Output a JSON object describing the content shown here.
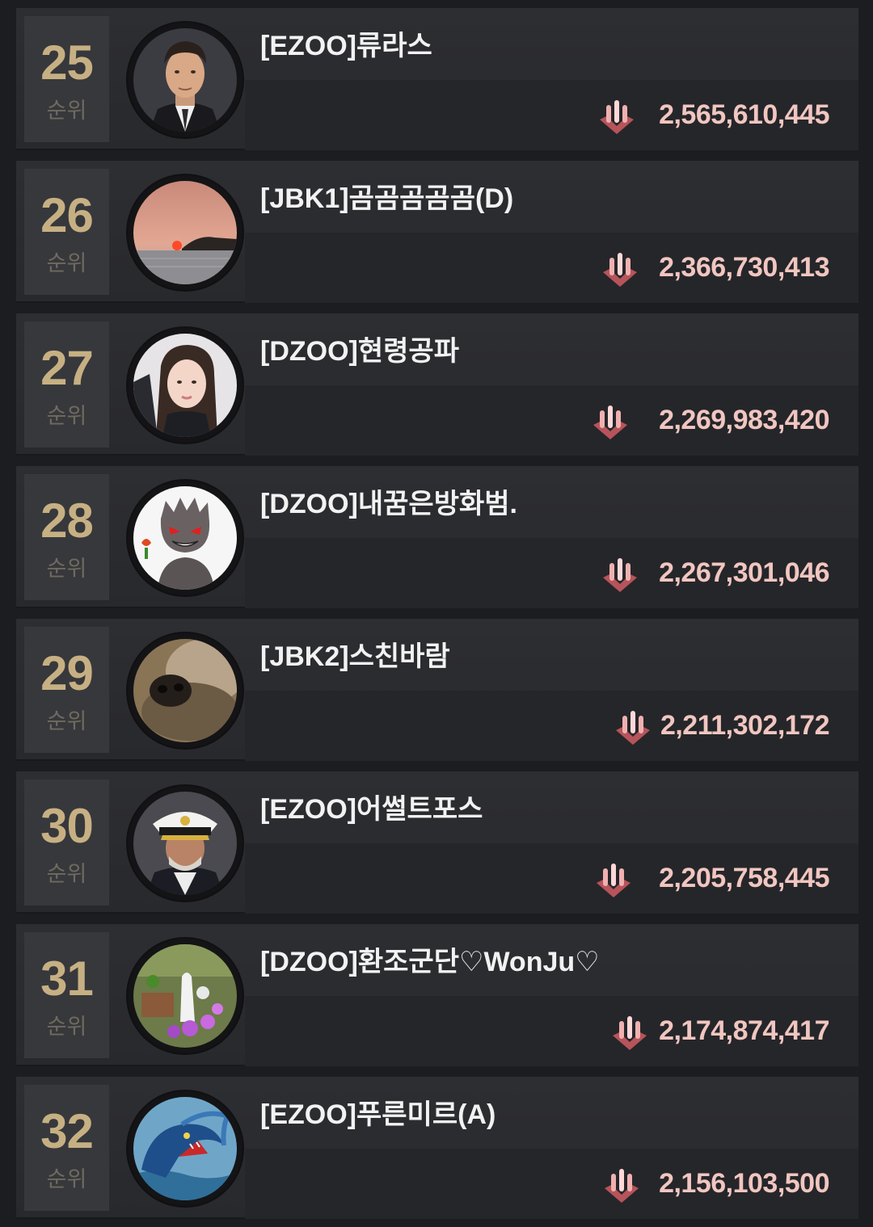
{
  "rankings": [
    {
      "rank": "25",
      "rank_label": "순위",
      "name": "[EZOO]류라스",
      "score": "2,565,610,445",
      "icon": "ammo-icon",
      "avatar": "man-portrait-avatar"
    },
    {
      "rank": "26",
      "rank_label": "순위",
      "name": "[JBK1]곰곰곰곰곰(D)",
      "score": "2,366,730,413",
      "icon": "ammo-icon",
      "avatar": "sunset-avatar"
    },
    {
      "rank": "27",
      "rank_label": "순위",
      "name": "[DZOO]현령공파",
      "score": "2,269,983,420",
      "icon": "ammo-icon",
      "avatar": "woman-portrait-avatar"
    },
    {
      "rank": "28",
      "rank_label": "순위",
      "name": "[DZOO]내꿈은방화범.",
      "score": "2,267,301,046",
      "icon": "ammo-icon",
      "avatar": "cartoon-creature-avatar"
    },
    {
      "rank": "29",
      "rank_label": "순위",
      "name": "[JBK2]스친바람",
      "score": "2,211,302,172",
      "icon": "ammo-icon",
      "avatar": "dog-nose-avatar"
    },
    {
      "rank": "30",
      "rank_label": "순위",
      "name": "[EZOO]어썰트포스",
      "score": "2,205,758,445",
      "icon": "ammo-icon",
      "avatar": "captain-portrait-avatar"
    },
    {
      "rank": "31",
      "rank_label": "순위",
      "name": "[DZOO]환조군단♡WonJu♡",
      "score": "2,174,874,417",
      "icon": "ammo-icon",
      "avatar": "garden-flowers-avatar"
    },
    {
      "rank": "32",
      "rank_label": "순위",
      "name": "[EZOO]푸른미르(A)",
      "score": "2,156,103,500",
      "icon": "ammo-icon",
      "avatar": "blue-dragon-avatar"
    }
  ]
}
